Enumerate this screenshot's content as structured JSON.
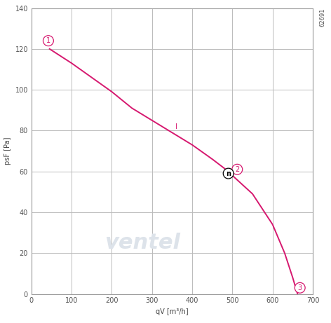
{
  "chart_data": {
    "type": "line",
    "x_label": "qV [m³/h]",
    "y_label": "psF [Pa]",
    "x": [
      45,
      100,
      150,
      200,
      250,
      300,
      350,
      400,
      450,
      490,
      500,
      550,
      600,
      630,
      650,
      662
    ],
    "values": [
      120,
      113,
      106,
      99,
      91,
      85,
      79,
      73,
      66,
      60,
      58,
      49,
      34,
      20,
      8,
      0
    ],
    "color": "#d6186f",
    "xlim": [
      0,
      700
    ],
    "xticks": [
      0,
      100,
      200,
      300,
      400,
      500,
      600,
      700
    ],
    "ylim": [
      0,
      140
    ],
    "yticks": [
      0,
      20,
      40,
      60,
      80,
      100,
      120,
      140
    ],
    "grid": true,
    "annotations": [
      {
        "text": "1",
        "x": 42,
        "y": 124,
        "color": "#d6186f",
        "marker": "circle"
      },
      {
        "text": "2",
        "x": 512,
        "y": 61,
        "color": "#d6186f",
        "marker": "circle"
      },
      {
        "text": "3",
        "x": 668,
        "y": 3,
        "color": "#d6186f",
        "marker": "circle"
      },
      {
        "text": "n",
        "x": 490,
        "y": 59,
        "color": "#000000",
        "marker": "circle"
      },
      {
        "text": "I",
        "x": 360,
        "y": 82,
        "color": "#d6186f"
      }
    ],
    "corner_text": "62691",
    "watermark": "ventel"
  }
}
